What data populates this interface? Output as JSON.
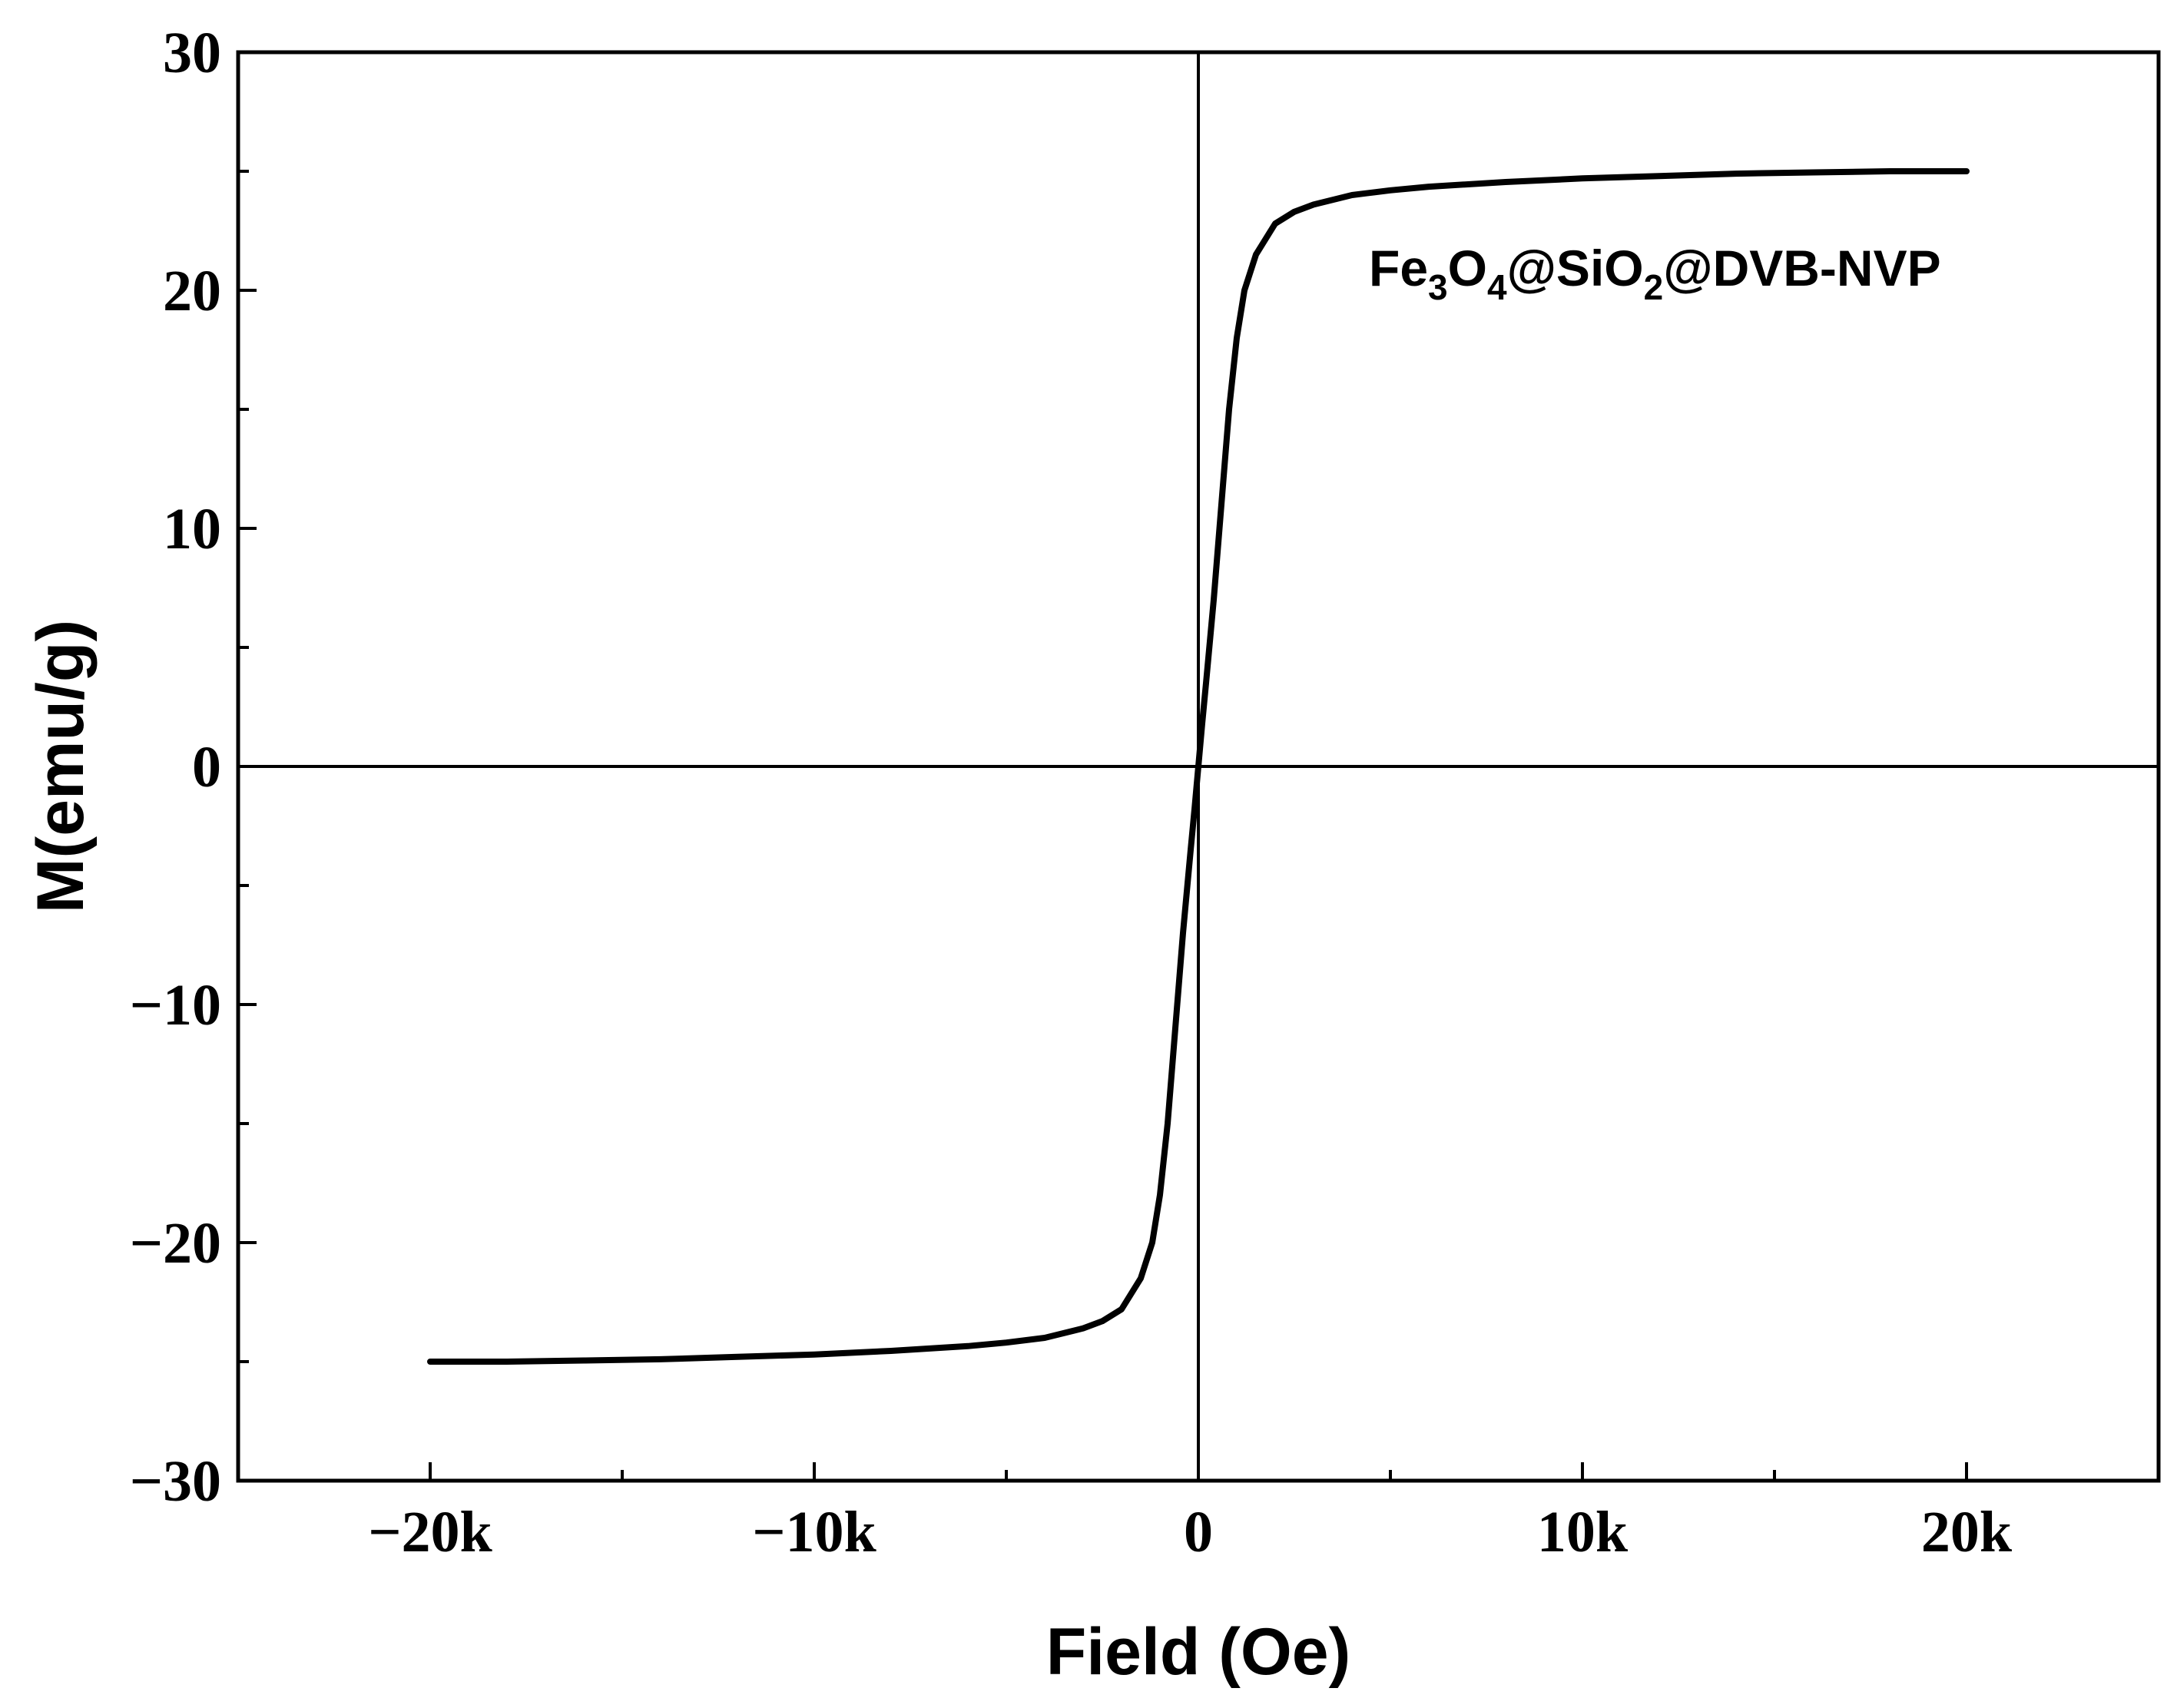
{
  "chart_data": {
    "type": "line",
    "title": "",
    "xlabel": "Field (Oe)",
    "ylabel": "M(emu/g)",
    "xlim": [
      -25000,
      25000
    ],
    "ylim": [
      -30,
      30
    ],
    "x_ticks": [
      {
        "value": -20000,
        "label": "−20k"
      },
      {
        "value": -10000,
        "label": "−10k"
      },
      {
        "value": 0,
        "label": "0"
      },
      {
        "value": 10000,
        "label": "10k"
      },
      {
        "value": 20000,
        "label": "20k"
      }
    ],
    "x_minor_ticks": [
      -15000,
      -5000,
      5000,
      15000
    ],
    "y_ticks": [
      {
        "value": -30,
        "label": "−30"
      },
      {
        "value": -20,
        "label": "−20"
      },
      {
        "value": -10,
        "label": "−10"
      },
      {
        "value": 0,
        "label": "0"
      },
      {
        "value": 10,
        "label": "10"
      },
      {
        "value": 20,
        "label": "20"
      },
      {
        "value": 30,
        "label": "30"
      }
    ],
    "y_minor_ticks": [
      -25,
      -15,
      -5,
      5,
      15,
      25
    ],
    "zero_lines": true,
    "grid": false,
    "annotation": {
      "parts": [
        {
          "text": "Fe",
          "sub": false
        },
        {
          "text": "3",
          "sub": true
        },
        {
          "text": "O",
          "sub": false
        },
        {
          "text": "4",
          "sub": true
        },
        {
          "text": "@SiO",
          "sub": false
        },
        {
          "text": "2",
          "sub": true
        },
        {
          "text": "@DVB-NVP",
          "sub": false
        }
      ]
    },
    "series": [
      {
        "color": "#000000",
        "x": [
          -20000,
          -18000,
          -16000,
          -14000,
          -12000,
          -10000,
          -8000,
          -6000,
          -5000,
          -4000,
          -3000,
          -2500,
          -2000,
          -1500,
          -1200,
          -1000,
          -800,
          -600,
          -400,
          -200,
          -100,
          0,
          100,
          200,
          400,
          600,
          800,
          1000,
          1200,
          1500,
          2000,
          2500,
          3000,
          4000,
          5000,
          6000,
          8000,
          10000,
          12000,
          14000,
          16000,
          18000,
          20000
        ],
        "y": [
          -25.0,
          -25.0,
          -24.95,
          -24.9,
          -24.8,
          -24.7,
          -24.55,
          -24.35,
          -24.2,
          -24.0,
          -23.6,
          -23.3,
          -22.8,
          -21.5,
          -20.0,
          -18.0,
          -15.0,
          -11.0,
          -7.0,
          -3.5,
          -1.8,
          0,
          1.8,
          3.5,
          7.0,
          11.0,
          15.0,
          18.0,
          20.0,
          21.5,
          22.8,
          23.3,
          23.6,
          24.0,
          24.2,
          24.35,
          24.55,
          24.7,
          24.8,
          24.9,
          24.95,
          25.0,
          25.0
        ]
      }
    ]
  }
}
